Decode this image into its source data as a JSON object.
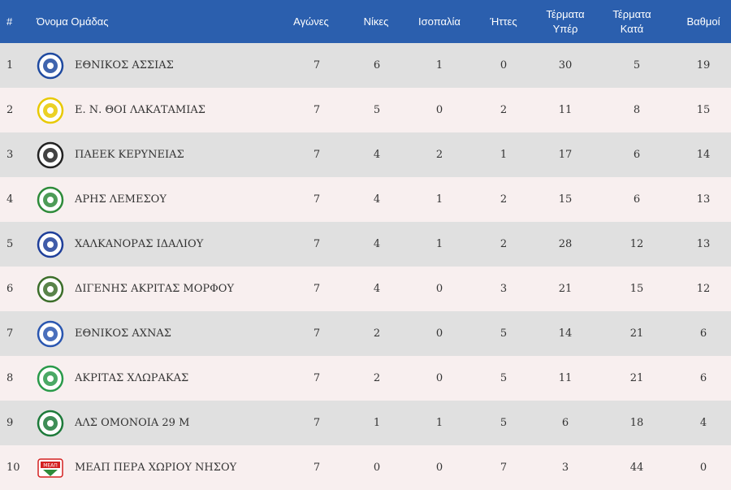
{
  "header": {
    "pos": "#",
    "team": "Όνομα Ομάδας",
    "played": "Αγώνες",
    "wins": "Νίκες",
    "draws": "Ισοπαλία",
    "losses": "Ήττες",
    "goals_for_1": "Τέρματα",
    "goals_for_2": "Υπέρ",
    "goals_against_1": "Τέρματα",
    "goals_against_2": "Κατά",
    "points": "Βαθμοί"
  },
  "rows": [
    {
      "pos": "1",
      "team": "ΕΘΝΙΚΟΣ ΑΣΣΙΑΣ",
      "played": "7",
      "wins": "6",
      "draws": "1",
      "losses": "0",
      "gf": "30",
      "ga": "5",
      "pts": "19",
      "logo": "ethnikos-assias-crest",
      "crest_color": "#1f4aa0"
    },
    {
      "pos": "2",
      "team": "Ε. Ν. ΘΟΙ ΛΑΚΑΤΑΜΙΑΣ",
      "played": "7",
      "wins": "5",
      "draws": "0",
      "losses": "2",
      "gf": "11",
      "ga": "8",
      "pts": "15",
      "logo": "thoi-lakatamias-crest",
      "crest_color": "#e8c900"
    },
    {
      "pos": "3",
      "team": "ΠΑΕΕΚ ΚΕΡΥΝΕΙΑΣ",
      "played": "7",
      "wins": "4",
      "draws": "2",
      "losses": "1",
      "gf": "17",
      "ga": "6",
      "pts": "14",
      "logo": "paeek-kyreneia-crest",
      "crest_color": "#222222"
    },
    {
      "pos": "4",
      "team": "ΑΡΗΣ ΛΕΜΕΣΟΥ",
      "played": "7",
      "wins": "4",
      "draws": "1",
      "losses": "2",
      "gf": "15",
      "ga": "6",
      "pts": "13",
      "logo": "aris-limassol-crest",
      "crest_color": "#2e8b3a"
    },
    {
      "pos": "5",
      "team": "ΧΑΛΚΑΝΟΡΑΣ ΙΔΑΛΙΟΥ",
      "played": "7",
      "wins": "4",
      "draws": "1",
      "losses": "2",
      "gf": "28",
      "ga": "12",
      "pts": "13",
      "logo": "chalkanoras-idaliou-crest",
      "crest_color": "#1f3f9a"
    },
    {
      "pos": "6",
      "team": "ΔΙΓΕΝΗΣ ΑΚΡΙΤΑΣ ΜΟΡΦΟΥ",
      "played": "7",
      "wins": "4",
      "draws": "0",
      "losses": "3",
      "gf": "21",
      "ga": "15",
      "pts": "12",
      "logo": "digenis-morfou-crest",
      "crest_color": "#3c6e2a"
    },
    {
      "pos": "7",
      "team": "ΕΘΝΙΚΟΣ ΑΧΝΑΣ",
      "played": "7",
      "wins": "2",
      "draws": "0",
      "losses": "5",
      "gf": "14",
      "ga": "21",
      "pts": "6",
      "logo": "ethnikos-achnas-crest",
      "crest_color": "#2a56b0"
    },
    {
      "pos": "8",
      "team": "ΑΚΡΙΤΑΣ ΧΛΩΡΑΚΑΣ",
      "played": "7",
      "wins": "2",
      "draws": "0",
      "losses": "5",
      "gf": "11",
      "ga": "21",
      "pts": "6",
      "logo": "akritas-chlorakas-crest",
      "crest_color": "#2a9a4a"
    },
    {
      "pos": "9",
      "team": "ΑΛΣ ΟΜΟΝΟΙΑ 29 Μ",
      "played": "7",
      "wins": "1",
      "draws": "1",
      "losses": "5",
      "gf": "6",
      "ga": "18",
      "pts": "4",
      "logo": "omonoia-29m-crest",
      "crest_color": "#1d7a3a"
    },
    {
      "pos": "10",
      "team": "ΜΕΑΠ ΠΕΡΑ ΧΩΡΙΟΥ ΝΗΣΟΥ",
      "played": "7",
      "wins": "0",
      "draws": "0",
      "losses": "7",
      "gf": "3",
      "ga": "44",
      "pts": "0",
      "logo": "meap-pera-chorio-crest",
      "crest_color": "#d42020",
      "logo_text": "ΜΕΑΠ"
    }
  ]
}
